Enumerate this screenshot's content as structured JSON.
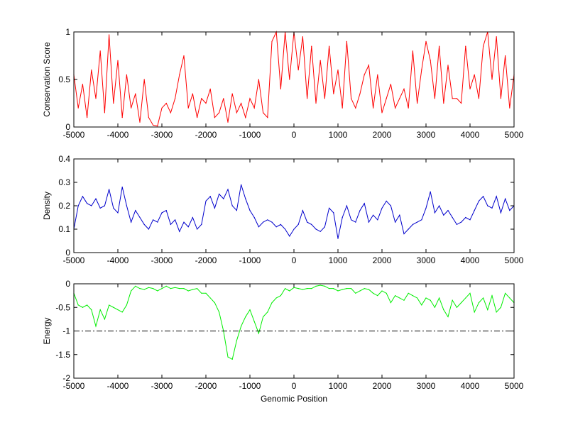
{
  "chart_data": [
    {
      "type": "line",
      "ylabel": "Conservation Score",
      "xlabel": "",
      "xlim": [
        -5000,
        5000
      ],
      "ylim": [
        0,
        1
      ],
      "xticks": [
        -5000,
        -4000,
        -3000,
        -2000,
        -1000,
        0,
        1000,
        2000,
        3000,
        4000,
        5000
      ],
      "xticklabels": [
        "-5000",
        "-4000",
        "-3000",
        "-2000",
        "-1000",
        "0",
        "1000",
        "2000",
        "3000",
        "4000",
        "5000"
      ],
      "yticks": [
        0,
        0.5,
        1
      ],
      "yticklabels": [
        "0",
        "0.5",
        "1"
      ],
      "grid": false,
      "series": [
        {
          "color": "#ff0000",
          "x": [
            -5000,
            -4900,
            -4800,
            -4700,
            -4600,
            -4500,
            -4400,
            -4300,
            -4200,
            -4100,
            -4000,
            -3900,
            -3800,
            -3700,
            -3600,
            -3500,
            -3400,
            -3300,
            -3200,
            -3100,
            -3000,
            -2900,
            -2800,
            -2700,
            -2600,
            -2500,
            -2400,
            -2300,
            -2200,
            -2100,
            -2000,
            -1900,
            -1800,
            -1700,
            -1600,
            -1500,
            -1400,
            -1300,
            -1200,
            -1100,
            -1000,
            -900,
            -800,
            -700,
            -600,
            -500,
            -400,
            -300,
            -200,
            -100,
            0,
            100,
            200,
            300,
            400,
            500,
            600,
            700,
            800,
            900,
            1000,
            1100,
            1200,
            1300,
            1400,
            1500,
            1600,
            1700,
            1800,
            1900,
            2000,
            2100,
            2200,
            2300,
            2400,
            2500,
            2600,
            2700,
            2800,
            2900,
            3000,
            3100,
            3200,
            3300,
            3400,
            3500,
            3600,
            3700,
            3800,
            3900,
            4000,
            4100,
            4200,
            4300,
            4400,
            4500,
            4600,
            4700,
            4800,
            4900,
            5000
          ],
          "y": [
            0.55,
            0.2,
            0.45,
            0.1,
            0.6,
            0.3,
            0.8,
            0.15,
            0.97,
            0.25,
            0.7,
            0.1,
            0.55,
            0.2,
            0.35,
            0.05,
            0.5,
            0.1,
            0.02,
            0.01,
            0.2,
            0.25,
            0.15,
            0.3,
            0.55,
            0.75,
            0.2,
            0.35,
            0.1,
            0.3,
            0.25,
            0.4,
            0.1,
            0.15,
            0.3,
            0.05,
            0.35,
            0.15,
            0.25,
            0.1,
            0.3,
            0.2,
            0.5,
            0.15,
            0.1,
            0.9,
            1.0,
            0.4,
            1.0,
            0.5,
            1.0,
            0.6,
            0.95,
            0.3,
            0.85,
            0.25,
            0.7,
            0.3,
            0.85,
            0.35,
            0.6,
            0.2,
            0.9,
            0.3,
            0.2,
            0.35,
            0.55,
            0.65,
            0.2,
            0.55,
            0.15,
            0.3,
            0.45,
            0.2,
            0.3,
            0.4,
            0.2,
            0.8,
            0.25,
            0.6,
            0.9,
            0.7,
            0.3,
            0.85,
            0.25,
            0.65,
            0.3,
            0.3,
            0.25,
            0.85,
            0.4,
            0.55,
            0.3,
            0.85,
            1.0,
            0.5,
            0.95,
            0.3,
            0.75,
            0.2,
            0.55
          ]
        }
      ]
    },
    {
      "type": "line",
      "ylabel": "Density",
      "xlabel": "",
      "xlim": [
        -5000,
        5000
      ],
      "ylim": [
        0,
        0.4
      ],
      "xticks": [
        -5000,
        -4000,
        -3000,
        -2000,
        -1000,
        0,
        1000,
        2000,
        3000,
        4000,
        5000
      ],
      "xticklabels": [
        "-5000",
        "-4000",
        "-3000",
        "-2000",
        "-1000",
        "0",
        "1000",
        "2000",
        "3000",
        "4000",
        "5000"
      ],
      "yticks": [
        0,
        0.1,
        0.2,
        0.3,
        0.4
      ],
      "yticklabels": [
        "0",
        "0.1",
        "0.2",
        "0.3",
        "0.4"
      ],
      "grid": false,
      "series": [
        {
          "color": "#0000cc",
          "x": [
            -5000,
            -4900,
            -4800,
            -4700,
            -4600,
            -4500,
            -4400,
            -4300,
            -4200,
            -4100,
            -4000,
            -3900,
            -3800,
            -3700,
            -3600,
            -3500,
            -3400,
            -3300,
            -3200,
            -3100,
            -3000,
            -2900,
            -2800,
            -2700,
            -2600,
            -2500,
            -2400,
            -2300,
            -2200,
            -2100,
            -2000,
            -1900,
            -1800,
            -1700,
            -1600,
            -1500,
            -1400,
            -1300,
            -1200,
            -1100,
            -1000,
            -900,
            -800,
            -700,
            -600,
            -500,
            -400,
            -300,
            -200,
            -100,
            0,
            100,
            200,
            300,
            400,
            500,
            600,
            700,
            800,
            900,
            1000,
            1100,
            1200,
            1300,
            1400,
            1500,
            1600,
            1700,
            1800,
            1900,
            2000,
            2100,
            2200,
            2300,
            2400,
            2500,
            2600,
            2700,
            2800,
            2900,
            3000,
            3100,
            3200,
            3300,
            3400,
            3500,
            3600,
            3700,
            3800,
            3900,
            4000,
            4100,
            4200,
            4300,
            4400,
            4500,
            4600,
            4700,
            4800,
            4900,
            5000
          ],
          "y": [
            0.1,
            0.2,
            0.24,
            0.21,
            0.2,
            0.23,
            0.19,
            0.2,
            0.27,
            0.19,
            0.17,
            0.28,
            0.2,
            0.13,
            0.18,
            0.15,
            0.12,
            0.1,
            0.14,
            0.13,
            0.17,
            0.18,
            0.12,
            0.14,
            0.09,
            0.13,
            0.11,
            0.15,
            0.1,
            0.12,
            0.22,
            0.24,
            0.19,
            0.25,
            0.23,
            0.27,
            0.2,
            0.18,
            0.29,
            0.23,
            0.18,
            0.15,
            0.11,
            0.13,
            0.14,
            0.13,
            0.11,
            0.12,
            0.1,
            0.07,
            0.1,
            0.12,
            0.18,
            0.13,
            0.12,
            0.1,
            0.09,
            0.11,
            0.19,
            0.17,
            0.06,
            0.15,
            0.2,
            0.14,
            0.13,
            0.18,
            0.21,
            0.13,
            0.16,
            0.14,
            0.19,
            0.22,
            0.2,
            0.13,
            0.16,
            0.08,
            0.1,
            0.12,
            0.13,
            0.14,
            0.19,
            0.26,
            0.17,
            0.2,
            0.16,
            0.18,
            0.15,
            0.12,
            0.13,
            0.15,
            0.14,
            0.18,
            0.22,
            0.24,
            0.2,
            0.19,
            0.24,
            0.17,
            0.23,
            0.18,
            0.2
          ]
        }
      ]
    },
    {
      "type": "line",
      "ylabel": "Energy",
      "xlabel": "Genomic Position",
      "xlim": [
        -5000,
        5000
      ],
      "ylim": [
        -2,
        0
      ],
      "xticks": [
        -5000,
        -4000,
        -3000,
        -2000,
        -1000,
        0,
        1000,
        2000,
        3000,
        4000,
        5000
      ],
      "xticklabels": [
        "-5000",
        "-4000",
        "-3000",
        "-2000",
        "-1000",
        "0",
        "1000",
        "2000",
        "3000",
        "4000",
        "5000"
      ],
      "yticks": [
        -2,
        -1.5,
        -1,
        -0.5,
        0
      ],
      "yticklabels": [
        "-2",
        "-1.5",
        "-1",
        "-0.5",
        "0"
      ],
      "grid": false,
      "reference_line": {
        "y": -1,
        "style": "dash-dot",
        "color": "#000000"
      },
      "series": [
        {
          "color": "#00ee00",
          "x": [
            -5000,
            -4900,
            -4800,
            -4700,
            -4600,
            -4500,
            -4400,
            -4300,
            -4200,
            -4100,
            -4000,
            -3900,
            -3800,
            -3700,
            -3600,
            -3500,
            -3400,
            -3300,
            -3200,
            -3100,
            -3000,
            -2900,
            -2800,
            -2700,
            -2600,
            -2500,
            -2400,
            -2300,
            -2200,
            -2100,
            -2000,
            -1900,
            -1800,
            -1700,
            -1600,
            -1500,
            -1400,
            -1300,
            -1200,
            -1100,
            -1000,
            -900,
            -800,
            -700,
            -600,
            -500,
            -400,
            -300,
            -200,
            -100,
            0,
            100,
            200,
            300,
            400,
            500,
            600,
            700,
            800,
            900,
            1000,
            1100,
            1200,
            1300,
            1400,
            1500,
            1600,
            1700,
            1800,
            1900,
            2000,
            2100,
            2200,
            2300,
            2400,
            2500,
            2600,
            2700,
            2800,
            2900,
            3000,
            3100,
            3200,
            3300,
            3400,
            3500,
            3600,
            3700,
            3800,
            3900,
            4000,
            4100,
            4200,
            4300,
            4400,
            4500,
            4600,
            4700,
            4800,
            4900,
            5000
          ],
          "y": [
            -0.2,
            -0.45,
            -0.5,
            -0.45,
            -0.55,
            -0.9,
            -0.55,
            -0.75,
            -0.45,
            -0.5,
            -0.55,
            -0.6,
            -0.45,
            -0.15,
            -0.05,
            -0.1,
            -0.12,
            -0.08,
            -0.1,
            -0.15,
            -0.1,
            -0.05,
            -0.1,
            -0.08,
            -0.1,
            -0.1,
            -0.15,
            -0.12,
            -0.1,
            -0.2,
            -0.2,
            -0.3,
            -0.4,
            -0.6,
            -1.0,
            -1.55,
            -1.6,
            -1.2,
            -0.9,
            -0.7,
            -0.55,
            -0.8,
            -1.05,
            -0.7,
            -0.6,
            -0.4,
            -0.3,
            -0.25,
            -0.1,
            -0.15,
            -0.08,
            -0.1,
            -0.12,
            -0.1,
            -0.1,
            -0.05,
            -0.03,
            -0.05,
            -0.1,
            -0.1,
            -0.15,
            -0.12,
            -0.1,
            -0.1,
            -0.2,
            -0.15,
            -0.1,
            -0.12,
            -0.2,
            -0.25,
            -0.15,
            -0.2,
            -0.4,
            -0.25,
            -0.3,
            -0.35,
            -0.2,
            -0.25,
            -0.3,
            -0.45,
            -0.3,
            -0.35,
            -0.5,
            -0.3,
            -0.55,
            -0.7,
            -0.35,
            -0.5,
            -0.4,
            -0.3,
            -0.2,
            -0.6,
            -0.4,
            -0.3,
            -0.55,
            -0.25,
            -0.6,
            -0.5,
            -0.2,
            -0.3,
            -0.4
          ]
        }
      ]
    }
  ]
}
